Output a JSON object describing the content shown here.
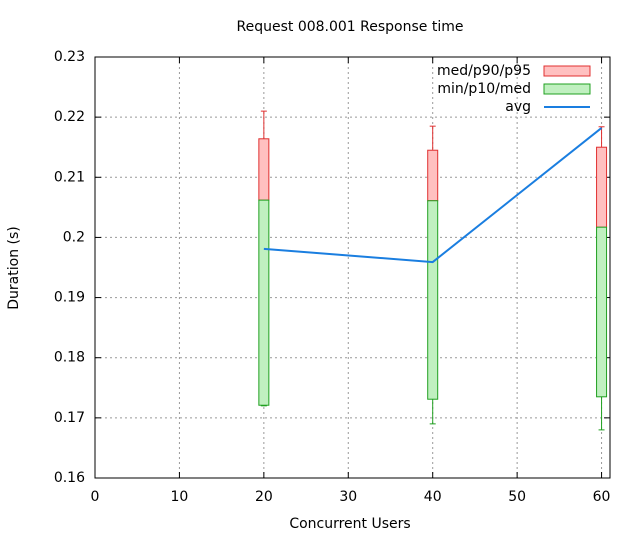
{
  "chart_data": {
    "type": "candlestick",
    "title": "Request 008.001 Response time",
    "x_label": "Concurrent Users",
    "y_label": "Duration (s)",
    "x": [
      20,
      40,
      60
    ],
    "min": [
      0.172,
      0.169,
      0.168
    ],
    "p10": [
      0.1721,
      0.1731,
      0.1735
    ],
    "med": [
      0.2062,
      0.2061,
      0.2017
    ],
    "p90": [
      0.2164,
      0.2145,
      0.215
    ],
    "p95": [
      0.221,
      0.2185,
      0.2184
    ],
    "series": [
      {
        "name": "med/p90/p95",
        "color": "#ffc0c0",
        "stroke": "#e03030"
      },
      {
        "name": "min/p10/med",
        "color": "#c0f0c0",
        "stroke": "#20a020"
      },
      {
        "name": "avg",
        "color": "#1a7ee0",
        "values": [
          0.1981,
          0.1959,
          0.2182
        ]
      }
    ],
    "xlim": [
      0,
      61
    ],
    "xticks": [
      0,
      10,
      20,
      30,
      40,
      50,
      60
    ],
    "ylim": [
      0.16,
      0.23
    ],
    "yticks": [
      0.16,
      0.17,
      0.18,
      0.19,
      0.2,
      0.21,
      0.22,
      0.23
    ],
    "grid": true,
    "legend": "top-right"
  }
}
